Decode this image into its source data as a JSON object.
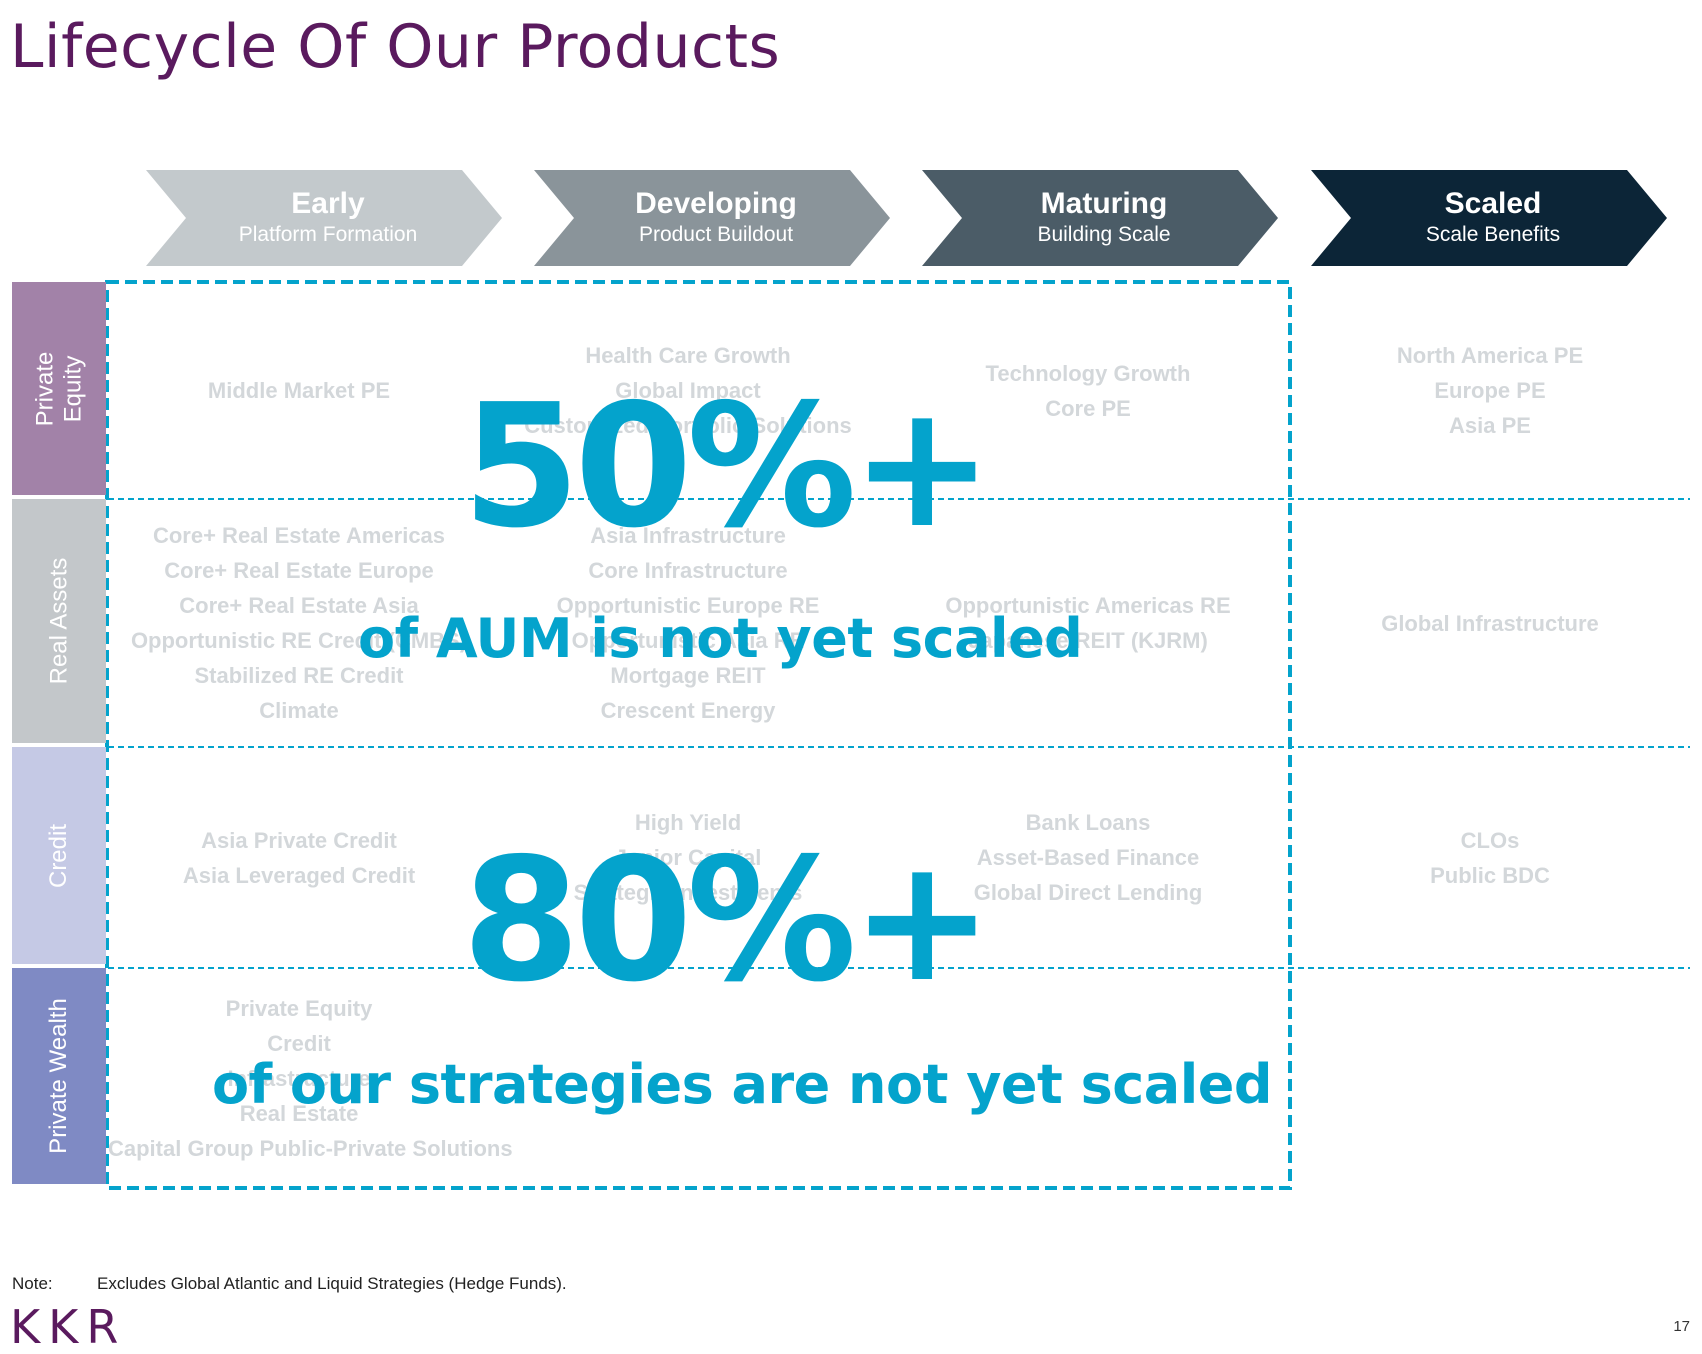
{
  "title": "Lifecycle Of Our Products",
  "stages": [
    {
      "name": "Early",
      "sub": "Platform Formation",
      "color": "#c3c9cc"
    },
    {
      "name": "Developing",
      "sub": "Product Buildout",
      "color": "#8a949a"
    },
    {
      "name": "Maturing",
      "sub": "Building Scale",
      "color": "#4b5c67"
    },
    {
      "name": "Scaled",
      "sub": "Scale Benefits",
      "color": "#0c2537"
    }
  ],
  "rows": [
    {
      "label": "Private\nEquity",
      "color": "#a282a8",
      "cells": [
        [
          "Middle Market PE"
        ],
        [
          "Health Care Growth",
          "Global Impact",
          "Customized Portfolio Solutions"
        ],
        [
          "Technology Growth",
          "Core PE"
        ],
        [
          "North America PE",
          "Europe PE",
          "Asia PE"
        ]
      ]
    },
    {
      "label": "Real Assets",
      "color": "#c3c7ca",
      "cells": [
        [
          "Core+ Real Estate Americas",
          "Core+ Real Estate Europe",
          "Core+ Real Estate Asia",
          "Opportunistic RE Credit (CMBS)",
          "Stabilized RE Credit",
          "Climate"
        ],
        [
          "Asia Infrastructure",
          "Core Infrastructure",
          "Opportunistic Europe RE",
          "Opportunistic Asia RE",
          "Mortgage REIT",
          "Crescent Energy"
        ],
        [
          "Opportunistic Americas RE",
          "Japanese REIT (KJRM)"
        ],
        [
          "Global Infrastructure"
        ]
      ]
    },
    {
      "label": "Credit",
      "color": "#c5c9e5",
      "cells": [
        [
          "Asia Private Credit",
          "Asia Leveraged Credit"
        ],
        [
          "High Yield",
          "Junior Capital",
          "Strategic Investments"
        ],
        [
          "Bank Loans",
          "Asset-Based Finance",
          "Global Direct Lending"
        ],
        [
          "CLOs",
          "Public BDC"
        ]
      ]
    },
    {
      "label": "Private Wealth",
      "color": "#7f8ac4",
      "cells": [
        [
          "Private Equity",
          "Credit",
          "Infrastructure",
          "Real Estate",
          "Capital Group Public-Private Solutions"
        ],
        [],
        [],
        []
      ]
    }
  ],
  "callouts": [
    {
      "value": "50%+",
      "caption": "of AUM is not yet scaled"
    },
    {
      "value": "80%+",
      "caption": "of our strategies are not yet scaled"
    }
  ],
  "note_label": "Note:",
  "note_text": "Excludes Global Atlantic and Liquid Strategies (Hedge Funds).",
  "logo": "KKR",
  "page_number": "17",
  "accent_color": "#04a3cc"
}
